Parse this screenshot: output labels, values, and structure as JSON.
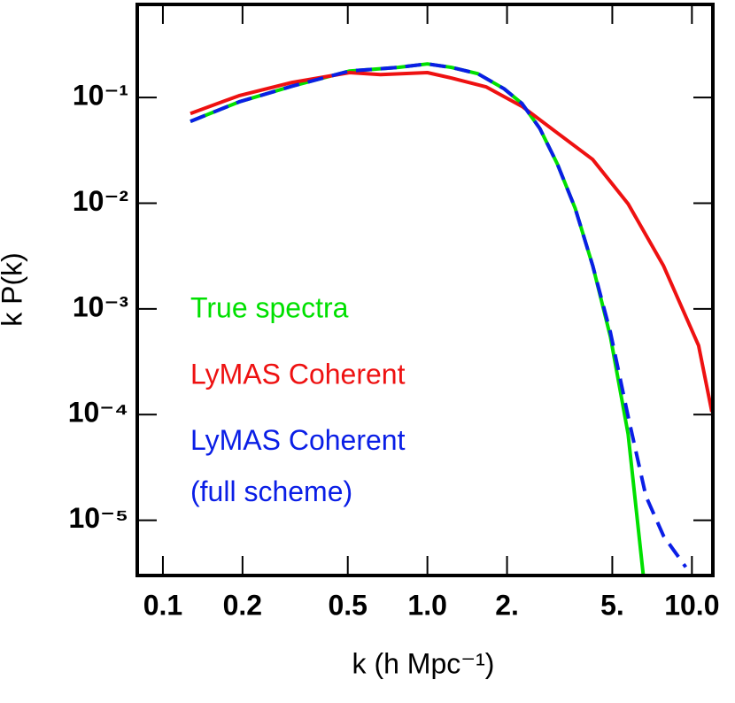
{
  "chart_data": {
    "type": "line",
    "xlabel": "k (h Mpc⁻¹)",
    "ylabel": "k P(k)",
    "xscale": "log",
    "yscale": "log",
    "xlim": [
      0.08,
      12
    ],
    "ylim": [
      3e-06,
      0.76
    ],
    "xticks": [
      0.1,
      0.2,
      0.5,
      {
        "value": 1,
        "label": "1.0"
      },
      {
        "value": 2,
        "label": "2."
      },
      {
        "value": 5,
        "label": "5."
      },
      {
        "value": 10,
        "label": "10.0"
      }
    ],
    "yticks": [
      {
        "value": 0.1,
        "label": "10⁻¹"
      },
      {
        "value": 0.01,
        "label": "10⁻²"
      },
      {
        "value": 0.001,
        "label": "10⁻³"
      },
      {
        "value": 0.0001,
        "label": "10⁻⁴"
      },
      {
        "value": 1e-05,
        "label": "10⁻⁵"
      }
    ],
    "series": [
      {
        "name": "True spectra",
        "color": "#00e000",
        "dash": false,
        "x": [
          0.127,
          0.194,
          0.308,
          0.508,
          0.776,
          1,
          1.23,
          1.55,
          1.95,
          2.28,
          2.66,
          3.1,
          3.62,
          4.22,
          4.92,
          5.74,
          6.55
        ],
        "values": [
          0.0594,
          0.0908,
          0.128,
          0.178,
          0.193,
          0.208,
          0.193,
          0.168,
          0.121,
          0.0874,
          0.0509,
          0.0235,
          0.00895,
          0.00255,
          0.000545,
          6.53e-05,
          2.98e-06
        ]
      },
      {
        "name": "LyMAS Coherent",
        "color": "#ee1111",
        "dash": false,
        "x": [
          0.127,
          0.194,
          0.308,
          0.508,
          0.665,
          1,
          1.23,
          1.67,
          2.28,
          3.1,
          4.22,
          5.74,
          7.81,
          10.6,
          11.9
        ],
        "values": [
          0.0706,
          0.104,
          0.139,
          0.172,
          0.165,
          0.172,
          0.153,
          0.126,
          0.0824,
          0.0462,
          0.0259,
          0.00986,
          0.00255,
          0.00045,
          0.000106
        ]
      },
      {
        "name": "LyMAS Coherent (full scheme)",
        "color": "#0a1ee6",
        "dash": true,
        "x": [
          0.127,
          0.194,
          0.308,
          0.508,
          0.776,
          1,
          1.23,
          1.55,
          1.95,
          2.28,
          2.66,
          3.1,
          3.62,
          4.22,
          4.92,
          5.74,
          6.7,
          7.81,
          9.48
        ],
        "values": [
          0.0594,
          0.0908,
          0.128,
          0.178,
          0.193,
          0.208,
          0.193,
          0.168,
          0.121,
          0.0874,
          0.0509,
          0.0235,
          0.00895,
          0.00255,
          0.0006,
          9.6e-05,
          1.69e-05,
          7.1e-06,
          3.6e-06
        ]
      }
    ]
  }
}
